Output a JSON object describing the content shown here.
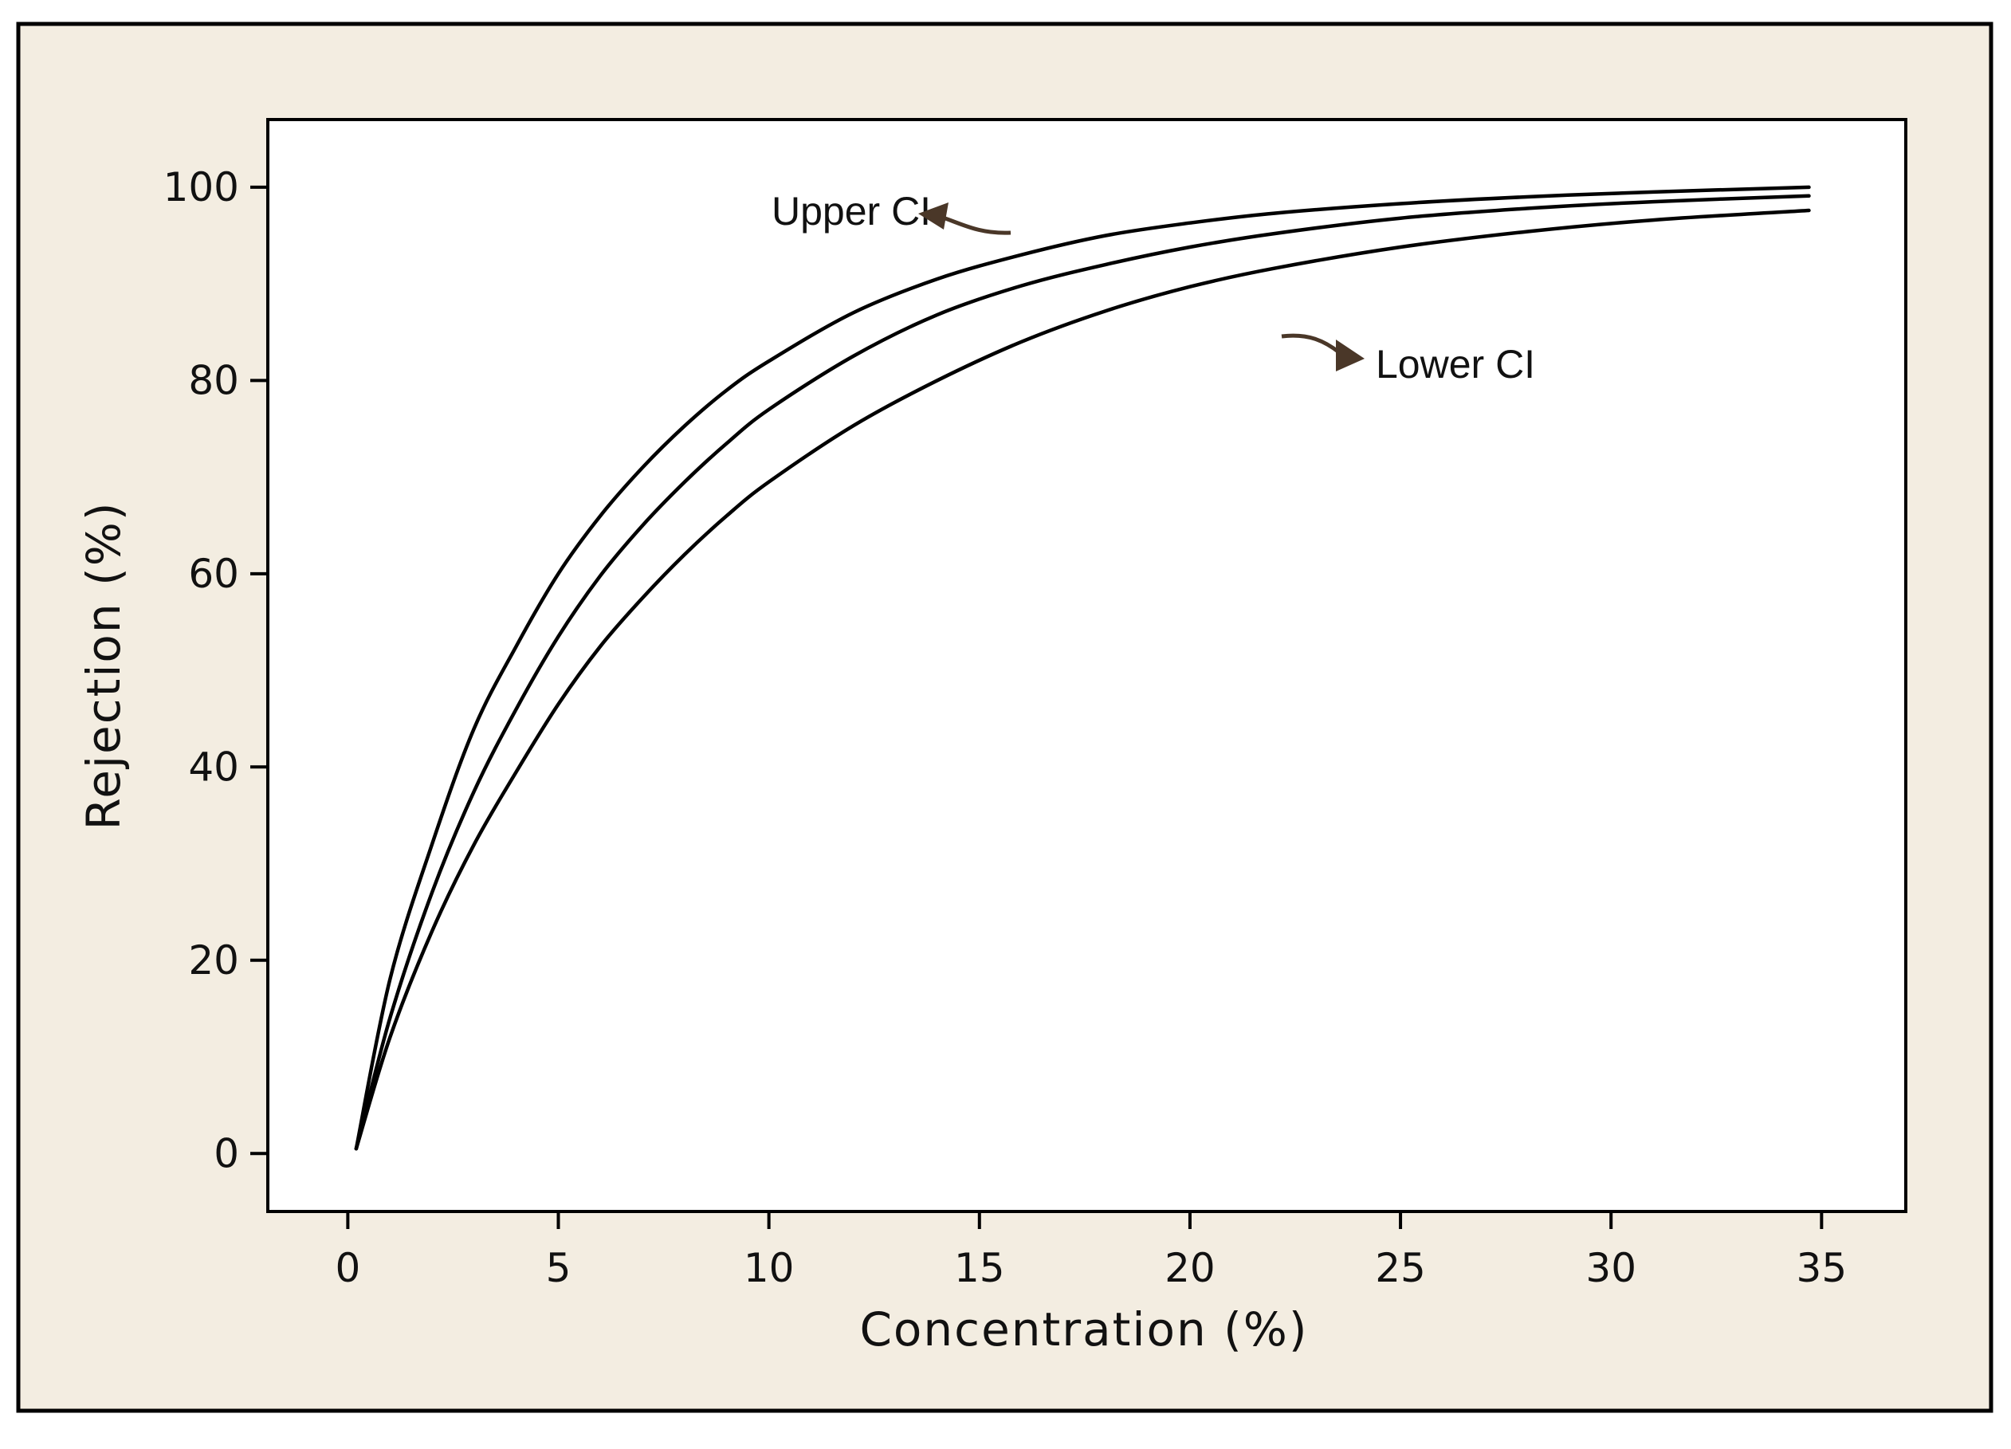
{
  "chart_data": {
    "type": "line",
    "title": "",
    "xlabel": "Concentration (%)",
    "ylabel": "Rejection (%)",
    "xlim": [
      -1.9,
      37
    ],
    "ylim": [
      -6,
      107
    ],
    "x_ticks": [
      0,
      5,
      10,
      15,
      20,
      25,
      30,
      35
    ],
    "y_ticks": [
      0,
      20,
      40,
      60,
      80,
      100
    ],
    "grid": false,
    "legend": "none",
    "background": "#f3ede1",
    "plot_background": "#ffffff",
    "line_color": "#000000",
    "arrow_color": "#4a3728",
    "x": [
      0.2,
      1,
      2,
      3,
      4,
      5,
      6,
      7,
      8,
      9,
      10,
      12,
      14,
      16,
      18,
      20,
      22,
      25,
      28,
      31,
      34.7
    ],
    "series": [
      {
        "values": [
          0.5,
          18,
          32,
          44,
          52.5,
          60,
          66,
          71,
          75.3,
          79,
          82,
          87,
          90.5,
          93,
          95,
          96.3,
          97.3,
          98.3,
          99,
          99.5,
          100
        ]
      },
      {
        "values": [
          0.5,
          14,
          27,
          37.5,
          46,
          53.5,
          59.8,
          65,
          69.5,
          73.5,
          77,
          82.5,
          86.8,
          89.8,
          92,
          93.8,
          95.2,
          96.8,
          97.8,
          98.5,
          99.1
        ]
      },
      {
        "values": [
          0.5,
          12,
          23,
          32,
          39.5,
          46.5,
          52.5,
          57.5,
          62,
          66,
          69.5,
          75.3,
          80,
          84,
          87.2,
          89.7,
          91.6,
          93.8,
          95.4,
          96.6,
          97.6
        ]
      }
    ],
    "annotations": [
      {
        "text": "Upper CI",
        "points_to_series": 0
      },
      {
        "text": "Lower CI",
        "points_to_series": 2
      }
    ]
  }
}
